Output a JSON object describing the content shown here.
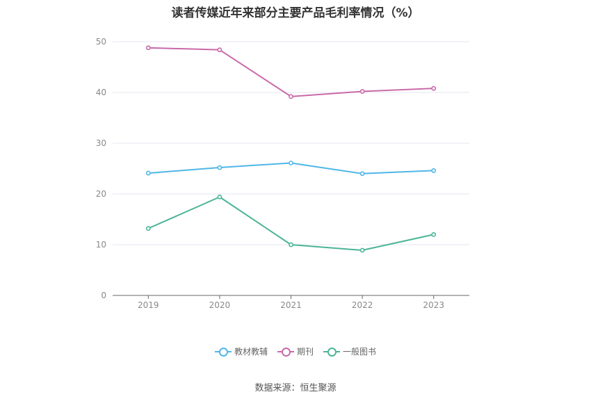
{
  "chart_data": {
    "type": "line",
    "title": "读者传媒近年来部分主要产品毛利率情况（%）",
    "categories": [
      "2019",
      "2020",
      "2021",
      "2022",
      "2023"
    ],
    "ylim": [
      0,
      50
    ],
    "yticks": [
      0,
      10,
      20,
      30,
      40,
      50
    ],
    "grid": true,
    "legend_position": "bottom",
    "series": [
      {
        "name": "教材教辅",
        "color": "#4fb6e8",
        "values": [
          24.1,
          25.2,
          26.1,
          24.0,
          24.6
        ]
      },
      {
        "name": "期刊",
        "color": "#c969a8",
        "values": [
          48.8,
          48.4,
          39.2,
          40.2,
          40.8
        ]
      },
      {
        "name": "一般图书",
        "color": "#4ab497",
        "values": [
          13.2,
          19.4,
          10.0,
          8.9,
          12.0
        ]
      }
    ]
  },
  "source": "数据来源：恒生聚源"
}
